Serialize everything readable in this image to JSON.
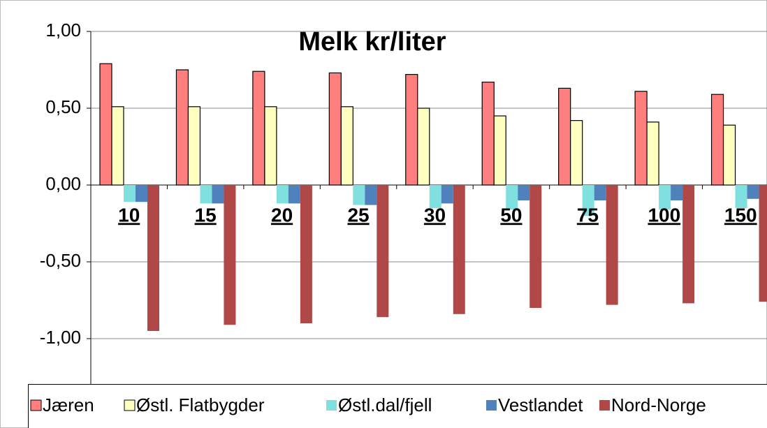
{
  "chart_data": {
    "type": "bar",
    "title": "Melk kr/liter",
    "categories": [
      "10",
      "15",
      "20",
      "25",
      "30",
      "50",
      "75",
      "100",
      "150"
    ],
    "series": [
      {
        "name": "Jæren",
        "color": "#ff7f7f",
        "values": [
          0.79,
          0.75,
          0.74,
          0.73,
          0.72,
          0.67,
          0.63,
          0.61,
          0.59
        ]
      },
      {
        "name": "Østl. Flatbygder",
        "color": "#ffffc0",
        "values": [
          0.51,
          0.51,
          0.51,
          0.51,
          0.5,
          0.45,
          0.42,
          0.41,
          0.39
        ]
      },
      {
        "name": "Østl.dal/fjell",
        "color": "#80e0e0",
        "values": [
          -0.11,
          -0.12,
          -0.12,
          -0.13,
          -0.15,
          -0.16,
          -0.2,
          -0.16,
          -0.15
        ]
      },
      {
        "name": "Vestlandet",
        "color": "#4f81bd",
        "values": [
          -0.11,
          -0.12,
          -0.12,
          -0.13,
          -0.12,
          -0.1,
          -0.1,
          -0.1,
          -0.09
        ]
      },
      {
        "name": "Nord-Norge",
        "color": "#b04848",
        "values": [
          -0.95,
          -0.91,
          -0.9,
          -0.86,
          -0.84,
          -0.8,
          -0.78,
          -0.77,
          -0.76
        ]
      }
    ],
    "ylim": [
      -1.3,
      1.0
    ],
    "yticks": [
      {
        "value": -1,
        "label": "-1,00"
      },
      {
        "value": -0.5,
        "label": "-0,50"
      },
      {
        "value": 0,
        "label": "0,00"
      },
      {
        "value": 0.5,
        "label": "0,50"
      },
      {
        "value": 1,
        "label": "1,00"
      }
    ],
    "grid": true
  }
}
